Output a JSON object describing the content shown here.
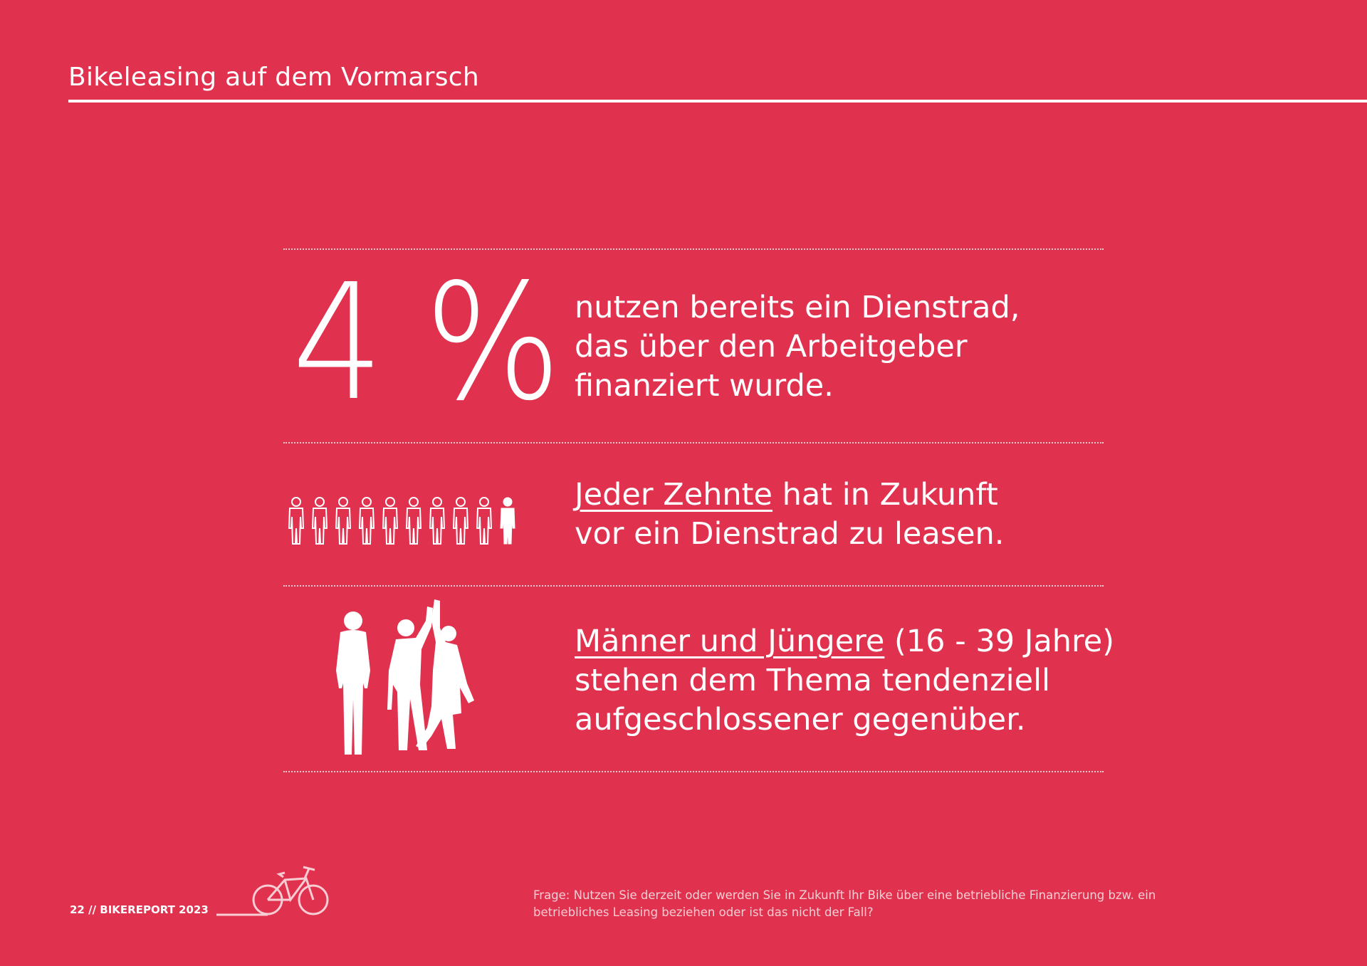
{
  "header": {
    "title": "Bikeleasing auf dem Vormarsch"
  },
  "stats": [
    {
      "value": "4 %",
      "lines": [
        "nutzen bereits ein Dienstrad,",
        "das über den Arbeitgeber",
        "finanziert wurde."
      ]
    },
    {
      "highlight": "Jeder Zehnte",
      "rest": " hat in Zukunft",
      "line2": "vor ein Dienstrad zu leasen.",
      "pictogram_filled": 1,
      "pictogram_total": 10
    },
    {
      "highlight": "Männer und Jüngere",
      "rest": " (16 - 39 Jahre)",
      "line2": "stehen dem Thema tendenziell",
      "line3": "aufgeschlossener gegenüber."
    }
  ],
  "footer": {
    "folio": "22 // BIKEREPORT 2023",
    "question_line1": "Frage: Nutzen Sie derzeit oder werden Sie in Zukunft Ihr Bike über eine betriebliche Finanzierung bzw. ein",
    "question_line2": "betriebliches Leasing beziehen oder ist das nicht der Fall?"
  },
  "colors": {
    "background": "#e0324f",
    "foreground": "#ffffff"
  },
  "icons": [
    "person-pictogram-icon",
    "people-silhouette-icon",
    "bike-icon"
  ]
}
